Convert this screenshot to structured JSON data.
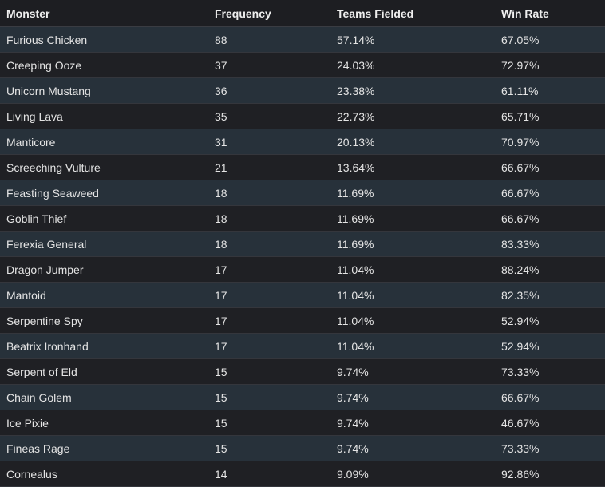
{
  "table": {
    "headers": [
      "Monster",
      "Frequency",
      "Teams Fielded",
      "Win Rate"
    ],
    "rows": [
      [
        "Furious Chicken",
        "88",
        "57.14%",
        "67.05%"
      ],
      [
        "Creeping Ooze",
        "37",
        "24.03%",
        "72.97%"
      ],
      [
        "Unicorn Mustang",
        "36",
        "23.38%",
        "61.11%"
      ],
      [
        "Living Lava",
        "35",
        "22.73%",
        "65.71%"
      ],
      [
        "Manticore",
        "31",
        "20.13%",
        "70.97%"
      ],
      [
        "Screeching Vulture",
        "21",
        "13.64%",
        "66.67%"
      ],
      [
        "Feasting Seaweed",
        "18",
        "11.69%",
        "66.67%"
      ],
      [
        "Goblin Thief",
        "18",
        "11.69%",
        "66.67%"
      ],
      [
        "Ferexia General",
        "18",
        "11.69%",
        "83.33%"
      ],
      [
        "Dragon Jumper",
        "17",
        "11.04%",
        "88.24%"
      ],
      [
        "Mantoid",
        "17",
        "11.04%",
        "82.35%"
      ],
      [
        "Serpentine Spy",
        "17",
        "11.04%",
        "52.94%"
      ],
      [
        "Beatrix Ironhand",
        "17",
        "11.04%",
        "52.94%"
      ],
      [
        "Serpent of Eld",
        "15",
        "9.74%",
        "73.33%"
      ],
      [
        "Chain Golem",
        "15",
        "9.74%",
        "66.67%"
      ],
      [
        "Ice Pixie",
        "15",
        "9.74%",
        "46.67%"
      ],
      [
        "Fineas Rage",
        "15",
        "9.74%",
        "73.33%"
      ],
      [
        "Cornealus",
        "14",
        "9.09%",
        "92.86%"
      ]
    ]
  },
  "colors": {
    "background": "#1d1e22",
    "row_alt": "#27313a",
    "text": "#e4e4e4"
  }
}
